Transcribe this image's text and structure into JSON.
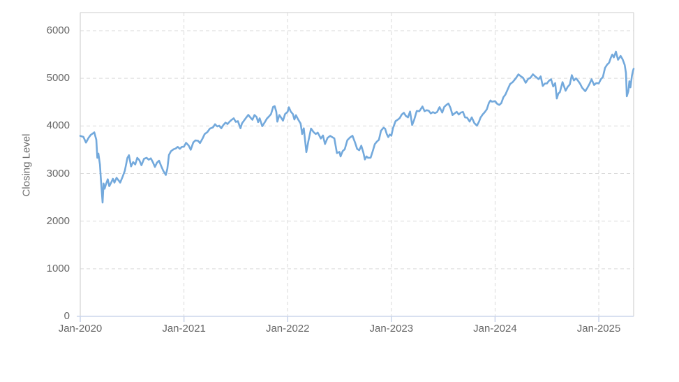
{
  "chart_data": {
    "type": "line",
    "title": "",
    "xlabel": "",
    "ylabel": "Closing Level",
    "x_tick_labels": [
      "Jan-2020",
      "Jan-2021",
      "Jan-2022",
      "Jan-2023",
      "Jan-2024",
      "Jan-2025"
    ],
    "x_tick_years": [
      0,
      1,
      2,
      3,
      4,
      5
    ],
    "y_ticks": [
      0,
      1000,
      2000,
      3000,
      4000,
      5000,
      6000
    ],
    "xlim_years_from_2020": [
      0,
      5.336
    ],
    "ylim": [
      0,
      6380
    ],
    "grid": "dashed-both-axes",
    "legend_position": "none",
    "style": {
      "line_color": "#73a9dc",
      "axis_line_color": "#ccd6eb",
      "grid_color": "#d9d9d9",
      "plot_border_color": "#d6d6d6",
      "tick_text_color": "#666666"
    },
    "series": [
      {
        "name": "Closing Level",
        "x_unit": "years since Jan-2020",
        "points": [
          [
            0.0,
            3790
          ],
          [
            0.03,
            3770
          ],
          [
            0.055,
            3650
          ],
          [
            0.08,
            3750
          ],
          [
            0.1,
            3810
          ],
          [
            0.135,
            3865
          ],
          [
            0.155,
            3710
          ],
          [
            0.165,
            3330
          ],
          [
            0.175,
            3420
          ],
          [
            0.19,
            3190
          ],
          [
            0.2,
            2850
          ],
          [
            0.215,
            2390
          ],
          [
            0.225,
            2790
          ],
          [
            0.235,
            2680
          ],
          [
            0.25,
            2790
          ],
          [
            0.265,
            2880
          ],
          [
            0.28,
            2735
          ],
          [
            0.3,
            2820
          ],
          [
            0.315,
            2890
          ],
          [
            0.33,
            2810
          ],
          [
            0.35,
            2910
          ],
          [
            0.37,
            2855
          ],
          [
            0.385,
            2810
          ],
          [
            0.41,
            2940
          ],
          [
            0.43,
            3060
          ],
          [
            0.455,
            3330
          ],
          [
            0.47,
            3384
          ],
          [
            0.49,
            3150
          ],
          [
            0.51,
            3240
          ],
          [
            0.53,
            3190
          ],
          [
            0.55,
            3330
          ],
          [
            0.57,
            3280
          ],
          [
            0.59,
            3175
          ],
          [
            0.615,
            3310
          ],
          [
            0.64,
            3330
          ],
          [
            0.66,
            3290
          ],
          [
            0.68,
            3320
          ],
          [
            0.7,
            3240
          ],
          [
            0.72,
            3140
          ],
          [
            0.74,
            3230
          ],
          [
            0.76,
            3270
          ],
          [
            0.78,
            3160
          ],
          [
            0.8,
            3060
          ],
          [
            0.825,
            2970
          ],
          [
            0.84,
            3100
          ],
          [
            0.855,
            3390
          ],
          [
            0.875,
            3470
          ],
          [
            0.9,
            3510
          ],
          [
            0.92,
            3525
          ],
          [
            0.94,
            3560
          ],
          [
            0.96,
            3520
          ],
          [
            0.98,
            3560
          ],
          [
            1.0,
            3565
          ],
          [
            1.02,
            3645
          ],
          [
            1.045,
            3590
          ],
          [
            1.065,
            3500
          ],
          [
            1.09,
            3655
          ],
          [
            1.11,
            3696
          ],
          [
            1.135,
            3690
          ],
          [
            1.155,
            3640
          ],
          [
            1.18,
            3740
          ],
          [
            1.2,
            3830
          ],
          [
            1.225,
            3870
          ],
          [
            1.25,
            3945
          ],
          [
            1.28,
            3970
          ],
          [
            1.3,
            4035
          ],
          [
            1.32,
            3990
          ],
          [
            1.34,
            4005
          ],
          [
            1.36,
            3950
          ],
          [
            1.38,
            4020
          ],
          [
            1.4,
            4070
          ],
          [
            1.42,
            4040
          ],
          [
            1.44,
            4090
          ],
          [
            1.46,
            4130
          ],
          [
            1.48,
            4160
          ],
          [
            1.5,
            4085
          ],
          [
            1.52,
            4100
          ],
          [
            1.545,
            3950
          ],
          [
            1.56,
            4055
          ],
          [
            1.58,
            4115
          ],
          [
            1.6,
            4175
          ],
          [
            1.62,
            4233
          ],
          [
            1.64,
            4180
          ],
          [
            1.66,
            4130
          ],
          [
            1.68,
            4230
          ],
          [
            1.7,
            4190
          ],
          [
            1.715,
            4080
          ],
          [
            1.73,
            4160
          ],
          [
            1.755,
            3995
          ],
          [
            1.78,
            4080
          ],
          [
            1.8,
            4155
          ],
          [
            1.82,
            4200
          ],
          [
            1.84,
            4250
          ],
          [
            1.86,
            4400
          ],
          [
            1.875,
            4415
          ],
          [
            1.89,
            4300
          ],
          [
            1.9,
            4090
          ],
          [
            1.92,
            4230
          ],
          [
            1.935,
            4180
          ],
          [
            1.955,
            4110
          ],
          [
            1.975,
            4250
          ],
          [
            2.0,
            4298
          ],
          [
            2.012,
            4392
          ],
          [
            2.03,
            4300
          ],
          [
            2.05,
            4250
          ],
          [
            2.065,
            4136
          ],
          [
            2.08,
            4225
          ],
          [
            2.1,
            4140
          ],
          [
            2.125,
            4050
          ],
          [
            2.14,
            3830
          ],
          [
            2.155,
            3950
          ],
          [
            2.18,
            3450
          ],
          [
            2.2,
            3680
          ],
          [
            2.225,
            3945
          ],
          [
            2.25,
            3870
          ],
          [
            2.27,
            3830
          ],
          [
            2.29,
            3860
          ],
          [
            2.32,
            3735
          ],
          [
            2.34,
            3800
          ],
          [
            2.36,
            3620
          ],
          [
            2.385,
            3750
          ],
          [
            2.41,
            3790
          ],
          [
            2.43,
            3765
          ],
          [
            2.45,
            3740
          ],
          [
            2.475,
            3430
          ],
          [
            2.5,
            3455
          ],
          [
            2.51,
            3360
          ],
          [
            2.53,
            3470
          ],
          [
            2.55,
            3510
          ],
          [
            2.575,
            3700
          ],
          [
            2.6,
            3755
          ],
          [
            2.625,
            3794
          ],
          [
            2.65,
            3650
          ],
          [
            2.67,
            3517
          ],
          [
            2.69,
            3490
          ],
          [
            2.71,
            3586
          ],
          [
            2.73,
            3440
          ],
          [
            2.745,
            3296
          ],
          [
            2.76,
            3360
          ],
          [
            2.775,
            3330
          ],
          [
            2.8,
            3333
          ],
          [
            2.82,
            3470
          ],
          [
            2.84,
            3618
          ],
          [
            2.86,
            3670
          ],
          [
            2.88,
            3710
          ],
          [
            2.9,
            3900
          ],
          [
            2.925,
            3964
          ],
          [
            2.94,
            3940
          ],
          [
            2.955,
            3830
          ],
          [
            2.97,
            3766
          ],
          [
            2.985,
            3820
          ],
          [
            3.0,
            3794
          ],
          [
            3.015,
            3950
          ],
          [
            3.04,
            4100
          ],
          [
            3.06,
            4130
          ],
          [
            3.08,
            4163
          ],
          [
            3.1,
            4240
          ],
          [
            3.12,
            4277
          ],
          [
            3.14,
            4210
          ],
          [
            3.16,
            4180
          ],
          [
            3.18,
            4303
          ],
          [
            3.2,
            4020
          ],
          [
            3.22,
            4130
          ],
          [
            3.245,
            4315
          ],
          [
            3.27,
            4310
          ],
          [
            3.3,
            4409
          ],
          [
            3.32,
            4310
          ],
          [
            3.34,
            4330
          ],
          [
            3.36,
            4320
          ],
          [
            3.38,
            4263
          ],
          [
            3.4,
            4290
          ],
          [
            3.42,
            4270
          ],
          [
            3.44,
            4290
          ],
          [
            3.465,
            4395
          ],
          [
            3.49,
            4280
          ],
          [
            3.51,
            4400
          ],
          [
            3.53,
            4440
          ],
          [
            3.55,
            4471
          ],
          [
            3.57,
            4380
          ],
          [
            3.59,
            4230
          ],
          [
            3.61,
            4265
          ],
          [
            3.63,
            4297
          ],
          [
            3.65,
            4240
          ],
          [
            3.67,
            4280
          ],
          [
            3.69,
            4295
          ],
          [
            3.71,
            4180
          ],
          [
            3.73,
            4175
          ],
          [
            3.755,
            4091
          ],
          [
            3.775,
            4180
          ],
          [
            3.8,
            4060
          ],
          [
            3.825,
            4005
          ],
          [
            3.845,
            4090
          ],
          [
            3.86,
            4175
          ],
          [
            3.88,
            4240
          ],
          [
            3.9,
            4290
          ],
          [
            3.92,
            4350
          ],
          [
            3.94,
            4480
          ],
          [
            3.955,
            4534
          ],
          [
            3.97,
            4510
          ],
          [
            4.0,
            4522
          ],
          [
            4.02,
            4465
          ],
          [
            4.04,
            4440
          ],
          [
            4.06,
            4480
          ],
          [
            4.08,
            4600
          ],
          [
            4.1,
            4660
          ],
          [
            4.12,
            4760
          ],
          [
            4.145,
            4880
          ],
          [
            4.17,
            4920
          ],
          [
            4.2,
            5002
          ],
          [
            4.225,
            5083
          ],
          [
            4.25,
            5040
          ],
          [
            4.27,
            5010
          ],
          [
            4.295,
            4907
          ],
          [
            4.32,
            4990
          ],
          [
            4.34,
            5010
          ],
          [
            4.365,
            5085
          ],
          [
            4.39,
            5035
          ],
          [
            4.42,
            4983
          ],
          [
            4.44,
            5040
          ],
          [
            4.46,
            4840
          ],
          [
            4.48,
            4890
          ],
          [
            4.5,
            4894
          ],
          [
            4.52,
            4950
          ],
          [
            4.54,
            4980
          ],
          [
            4.56,
            4830
          ],
          [
            4.58,
            4900
          ],
          [
            4.595,
            4575
          ],
          [
            4.61,
            4680
          ],
          [
            4.625,
            4710
          ],
          [
            4.65,
            4920
          ],
          [
            4.68,
            4740
          ],
          [
            4.7,
            4820
          ],
          [
            4.72,
            4870
          ],
          [
            4.74,
            5067
          ],
          [
            4.76,
            4955
          ],
          [
            4.78,
            5000
          ],
          [
            4.8,
            4950
          ],
          [
            4.82,
            4885
          ],
          [
            4.84,
            4800
          ],
          [
            4.87,
            4729
          ],
          [
            4.89,
            4800
          ],
          [
            4.91,
            4880
          ],
          [
            4.93,
            4980
          ],
          [
            4.955,
            4860
          ],
          [
            4.975,
            4900
          ],
          [
            5.0,
            4896
          ],
          [
            5.02,
            4980
          ],
          [
            5.04,
            5030
          ],
          [
            5.06,
            5220
          ],
          [
            5.08,
            5287
          ],
          [
            5.1,
            5330
          ],
          [
            5.115,
            5430
          ],
          [
            5.13,
            5500
          ],
          [
            5.145,
            5440
          ],
          [
            5.165,
            5560
          ],
          [
            5.185,
            5390
          ],
          [
            5.21,
            5470
          ],
          [
            5.23,
            5400
          ],
          [
            5.25,
            5280
          ],
          [
            5.262,
            5113
          ],
          [
            5.27,
            4622
          ],
          [
            5.285,
            4730
          ],
          [
            5.295,
            4940
          ],
          [
            5.305,
            4810
          ],
          [
            5.32,
            5060
          ],
          [
            5.33,
            5160
          ],
          [
            5.336,
            5200
          ]
        ]
      }
    ]
  }
}
